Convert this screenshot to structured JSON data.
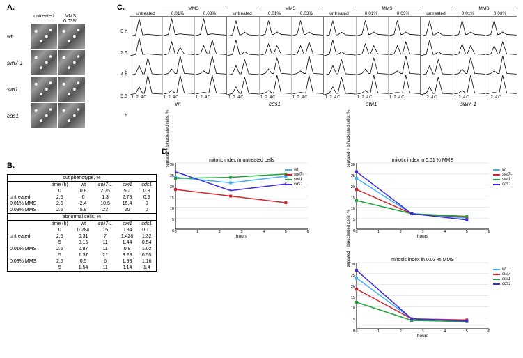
{
  "panelA": {
    "label": "A.",
    "col_headers": [
      "untreated",
      "MMS\n0.03%"
    ],
    "rows": [
      {
        "label": "wt",
        "italic": false
      },
      {
        "label": "swi7-1",
        "italic": true
      },
      {
        "label": "swi1",
        "italic": true
      },
      {
        "label": "cds1",
        "italic": true
      }
    ]
  },
  "panelB": {
    "label": "B.",
    "section1_title": "cut phenotype, %",
    "section2_title": "abnormal cells, %",
    "col_headers": [
      "time (h)",
      "wt",
      "swi7-1",
      "swi1",
      "cds1"
    ],
    "section1_rows": [
      {
        "cond": "",
        "t": "0",
        "vals": [
          "0.8",
          "2.75",
          "5.2",
          "0.9"
        ]
      },
      {
        "cond": "untreated",
        "t": "2.5",
        "vals": [
          "0",
          "1.3",
          "2.78",
          "0.9"
        ]
      },
      {
        "cond": "0.01% MMS",
        "t": "2.5",
        "vals": [
          "2.4",
          "10.5",
          "15.4",
          "0"
        ]
      },
      {
        "cond": "0.03% MMS",
        "t": "2.5",
        "vals": [
          "5.9",
          "23",
          "20",
          "0"
        ]
      }
    ],
    "section2_rows": [
      {
        "cond": "",
        "t": "0",
        "vals": [
          "0.284",
          "15",
          "0.84",
          "0.11"
        ]
      },
      {
        "cond": "untreated",
        "t": "2.5",
        "vals": [
          "0.31",
          "7",
          "1.428",
          "1.32"
        ]
      },
      {
        "cond": "",
        "t": "5",
        "vals": [
          "0.15",
          "11",
          "1.44",
          "0.54"
        ]
      },
      {
        "cond": "0.01% MMS",
        "t": "2.5",
        "vals": [
          "0.87",
          "11",
          "0.8",
          "1.02"
        ]
      },
      {
        "cond": "",
        "t": "5",
        "vals": [
          "1.37",
          "21",
          "3.28",
          "0.55"
        ]
      },
      {
        "cond": "0.03% MMS",
        "t": "2.5",
        "vals": [
          "0.5",
          "6",
          "1.93",
          "1.16"
        ]
      },
      {
        "cond": "",
        "t": "5",
        "vals": [
          "1.54",
          "11",
          "3.14",
          "1.4"
        ]
      }
    ]
  },
  "panelC": {
    "label": "C.",
    "mms_header": "MMS",
    "treatments": [
      "untreated",
      "0.01%",
      "0.03%"
    ],
    "timepoints": [
      "0 h",
      "2.5 h",
      "4 h",
      "5.5 h"
    ],
    "xticks_label": "1  2   4C",
    "genotypes": [
      "wt",
      "cds1",
      "swi1",
      "swi7-1"
    ],
    "peak_color": "#000000",
    "peak_profiles": {
      "wt": [
        [
          0.9,
          0.1
        ],
        [
          0.9,
          0.1
        ],
        [
          0.5,
          0.9
        ],
        [
          0.4,
          1.0
        ],
        [
          0.9,
          0.1
        ],
        [
          0.7,
          0.4
        ],
        [
          0.3,
          1.0
        ],
        [
          0.2,
          1.0
        ],
        [
          0.9,
          0.1
        ],
        [
          0.5,
          0.8
        ],
        [
          0.2,
          1.0
        ],
        [
          0.1,
          1.0
        ]
      ],
      "cds1": [
        [
          0.8,
          0.2
        ],
        [
          0.8,
          0.2
        ],
        [
          0.5,
          0.8
        ],
        [
          0.4,
          0.9
        ],
        [
          0.8,
          0.2
        ],
        [
          0.6,
          0.5
        ],
        [
          0.3,
          0.9
        ],
        [
          0.2,
          1.0
        ],
        [
          0.8,
          0.2
        ],
        [
          0.5,
          0.7
        ],
        [
          0.2,
          1.0
        ],
        [
          0.1,
          1.0
        ]
      ],
      "swi1": [
        [
          0.8,
          0.2
        ],
        [
          0.8,
          0.2
        ],
        [
          0.5,
          0.8
        ],
        [
          0.4,
          0.9
        ],
        [
          0.8,
          0.2
        ],
        [
          0.6,
          0.5
        ],
        [
          0.3,
          0.9
        ],
        [
          0.2,
          1.0
        ],
        [
          0.8,
          0.2
        ],
        [
          0.5,
          0.7
        ],
        [
          0.2,
          1.0
        ],
        [
          0.1,
          1.0
        ]
      ],
      "swi7-1": [
        [
          0.8,
          0.2
        ],
        [
          0.8,
          0.2
        ],
        [
          0.5,
          0.8
        ],
        [
          0.4,
          0.9
        ],
        [
          0.8,
          0.2
        ],
        [
          0.6,
          0.5
        ],
        [
          0.3,
          0.9
        ],
        [
          0.2,
          1.0
        ],
        [
          0.8,
          0.2
        ],
        [
          0.5,
          0.7
        ],
        [
          0.2,
          1.0
        ],
        [
          0.1,
          1.0
        ]
      ]
    }
  },
  "panelD": {
    "label": "D.",
    "ylabel": "septated + binucleated cells, %",
    "xlabel": "hours",
    "xlim": [
      0,
      6
    ],
    "ylim": [
      0,
      30
    ],
    "xticks": [
      0,
      1,
      2,
      3,
      4,
      5,
      6
    ],
    "yticks": [
      0,
      5,
      10,
      15,
      20,
      25,
      30
    ],
    "grid_color": "#c7d5e0",
    "axis_color": "#000000",
    "series_colors": {
      "wt": "#3db0f7",
      "swi7-": "#d8212b",
      "swi1": "#1fa43b",
      "cds1": "#3b2bd8"
    },
    "series_colors_chart3": {
      "wt": "#3db0f7",
      "swi7": "#d8212b",
      "swi1": "#1fa43b",
      "cds1": "#3b2bd8"
    },
    "charts": [
      {
        "title": "mitotic index in untreated cells",
        "legend_pos": "inside-top-right",
        "legend_keys": [
          "wt",
          "swi7-",
          "swi1",
          "cds1"
        ],
        "cds1_marker": "x",
        "series": {
          "wt": [
            [
              0,
              23.5
            ],
            [
              2.5,
              21
            ],
            [
              5,
              24
            ]
          ],
          "swi7-": [
            [
              0,
              18
            ],
            [
              2.5,
              15
            ],
            [
              5,
              12
            ]
          ],
          "swi1": [
            [
              0,
              23
            ],
            [
              2.5,
              23.5
            ],
            [
              5,
              25
            ]
          ],
          "cds1": [
            [
              0,
              26
            ],
            [
              2.5,
              17.5
            ],
            [
              5,
              20.5
            ]
          ]
        }
      },
      {
        "title": "mitotic index in 0.01 % MMS",
        "legend_pos": "outside-right",
        "legend_keys": [
          "wt",
          "swi7-",
          "swi1",
          "cds1"
        ],
        "series": {
          "wt": [
            [
              0,
              23
            ],
            [
              2.5,
              7
            ],
            [
              5,
              5
            ]
          ],
          "swi7-": [
            [
              0,
              18
            ],
            [
              2.5,
              7
            ],
            [
              5,
              5.5
            ]
          ],
          "swi1": [
            [
              0,
              13
            ],
            [
              2.5,
              7
            ],
            [
              5,
              5.8
            ]
          ],
          "cds1": [
            [
              0,
              26
            ],
            [
              2.5,
              7
            ],
            [
              5,
              4.2
            ]
          ]
        }
      },
      {
        "title": "mitosis index in 0.03 % MMS",
        "legend_pos": "outside-right",
        "legend_keys": [
          "wt",
          "swi7",
          "swi1",
          "cds1"
        ],
        "series": {
          "wt": [
            [
              0,
              23
            ],
            [
              2.5,
              4.5
            ],
            [
              5,
              3.5
            ]
          ],
          "swi7": [
            [
              0,
              18
            ],
            [
              2.5,
              4.5
            ],
            [
              5,
              4
            ]
          ],
          "swi1": [
            [
              0,
              12
            ],
            [
              2.5,
              3.8
            ],
            [
              5,
              3.2
            ]
          ],
          "cds1": [
            [
              0,
              26.5
            ],
            [
              2.5,
              4.5
            ],
            [
              5,
              3.5
            ]
          ]
        }
      }
    ]
  }
}
